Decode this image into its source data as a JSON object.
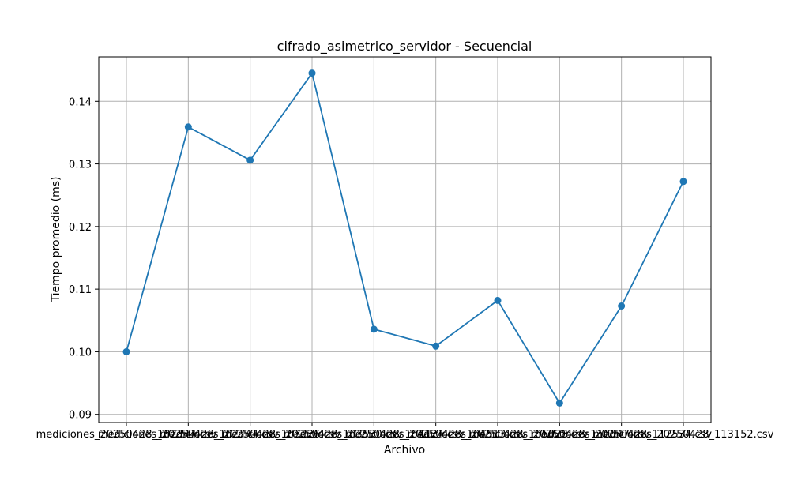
{
  "chart_data": {
    "type": "line",
    "title": "cifrado_asimetrico_servidor - Secuencial",
    "xlabel": "Archivo",
    "ylabel": "Tiempo promedio (ms)",
    "categories": [
      "mediciones_20250428_102344.csv",
      "mediciones_20250428_102744.csv",
      "mediciones_20250428_103226.csv",
      "mediciones_20250428_103530.csv",
      "mediciones_20250428_104124.csv",
      "mediciones_20250428_104513.csv",
      "mediciones_20250428_105028.csv",
      "mediciones_20250428_110047.csv",
      "mediciones_20250428_112534.csv",
      "mediciones_20250428_113152.csv"
    ],
    "series": [
      {
        "values": [
          0.1,
          0.1359,
          0.1306,
          0.1445,
          0.1036,
          0.1009,
          0.1082,
          0.0918,
          0.1073,
          0.1272
        ]
      }
    ],
    "yticks": [
      0.09,
      0.1,
      0.11,
      0.12,
      0.13,
      0.14
    ],
    "ylim": [
      0.0887,
      0.1471
    ],
    "grid": true,
    "colors": {
      "line": "#1f77b4",
      "grid": "#b0b0b0",
      "axis": "#000000"
    }
  }
}
